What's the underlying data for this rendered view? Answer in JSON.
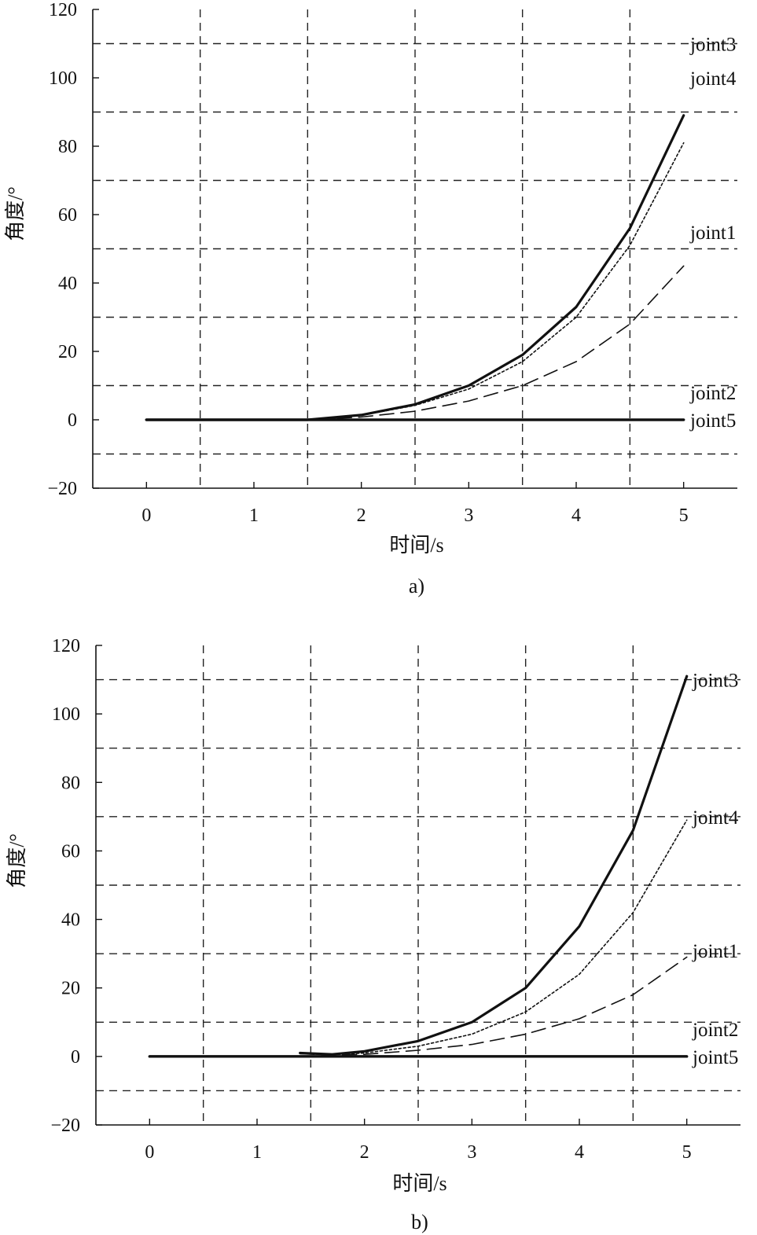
{
  "chart_data": [
    {
      "type": "line",
      "caption": "a)",
      "xlabel": "时间/s",
      "ylabel": "角度/°",
      "xlim": [
        -0.5,
        5.5
      ],
      "ylim": [
        -20,
        120
      ],
      "xticks": [
        0,
        1,
        2,
        3,
        4,
        5
      ],
      "yticks": [
        -20,
        0,
        20,
        40,
        60,
        80,
        100,
        120
      ],
      "ytick_labels": [
        "−20",
        "0",
        "20",
        "40",
        "60",
        "80",
        "100",
        "120"
      ],
      "grid": true,
      "series": [
        {
          "name": "joint4",
          "style": "solid-thick",
          "x": [
            0,
            1.5,
            2,
            2.5,
            3,
            3.5,
            4,
            4.5,
            5
          ],
          "y": [
            0,
            0,
            1.4,
            4.5,
            10,
            19,
            33,
            56,
            89
          ]
        },
        {
          "name": "joint3",
          "style": "dotted",
          "x": [
            0,
            1.5,
            2,
            2.5,
            3,
            3.5,
            4,
            4.5,
            5
          ],
          "y": [
            0,
            0,
            1.3,
            4.2,
            9,
            17,
            30,
            51,
            81
          ]
        },
        {
          "name": "joint1",
          "style": "dashed",
          "x": [
            0,
            1.5,
            2,
            2.5,
            3,
            3.5,
            4,
            4.5,
            5
          ],
          "y": [
            0,
            0,
            0.8,
            2.5,
            5.5,
            10,
            17,
            28,
            45
          ]
        },
        {
          "name": "joint2",
          "style": "solid-thick",
          "x": [
            0,
            5
          ],
          "y": [
            0,
            0
          ]
        },
        {
          "name": "joint5",
          "style": "solid-thick",
          "x": [
            0,
            5
          ],
          "y": [
            0,
            0
          ]
        }
      ],
      "annotations": [
        {
          "text": "joint3",
          "y": 110
        },
        {
          "text": "joint4",
          "y": 100
        },
        {
          "text": "joint1",
          "y": 55
        },
        {
          "text": "joint2",
          "y": 8
        },
        {
          "text": "joint5",
          "y": 0
        }
      ]
    },
    {
      "type": "line",
      "caption": "b)",
      "xlabel": "时间/s",
      "ylabel": "角度/°",
      "xlim": [
        -0.5,
        5.5
      ],
      "ylim": [
        -20,
        120
      ],
      "xticks": [
        0,
        1,
        2,
        3,
        4,
        5
      ],
      "yticks": [
        -20,
        0,
        20,
        40,
        60,
        80,
        100,
        120
      ],
      "ytick_labels": [
        "−20",
        "0",
        "20",
        "40",
        "60",
        "80",
        "100",
        "120"
      ],
      "grid": true,
      "series": [
        {
          "name": "joint3",
          "style": "solid-thick",
          "x": [
            1.4,
            1.7,
            2,
            2.5,
            3,
            3.5,
            4,
            4.5,
            5
          ],
          "y": [
            1,
            0.6,
            1.5,
            4.5,
            10,
            20,
            38,
            66,
            111
          ]
        },
        {
          "name": "joint4",
          "style": "dotted",
          "x": [
            1.4,
            1.7,
            2,
            2.5,
            3,
            3.5,
            4,
            4.5,
            5
          ],
          "y": [
            0.9,
            0.5,
            1,
            3,
            6.5,
            13,
            24,
            42,
            69
          ]
        },
        {
          "name": "joint1",
          "style": "dashed",
          "x": [
            1.4,
            1.7,
            2,
            2.5,
            3,
            3.5,
            4,
            4.5,
            5
          ],
          "y": [
            0.8,
            0.4,
            0.6,
            1.8,
            3.5,
            6.5,
            11,
            18,
            29
          ]
        },
        {
          "name": "joint2",
          "style": "solid-thick",
          "x": [
            0,
            5
          ],
          "y": [
            0,
            0
          ]
        },
        {
          "name": "joint5",
          "style": "solid-thick",
          "x": [
            0,
            5
          ],
          "y": [
            0,
            0
          ]
        }
      ],
      "annotations": [
        {
          "text": "joint3",
          "y": 110
        },
        {
          "text": "joint4",
          "y": 70
        },
        {
          "text": "joint1",
          "y": 31
        },
        {
          "text": "joint2",
          "y": 8
        },
        {
          "text": "joint5",
          "y": 0
        }
      ]
    }
  ]
}
